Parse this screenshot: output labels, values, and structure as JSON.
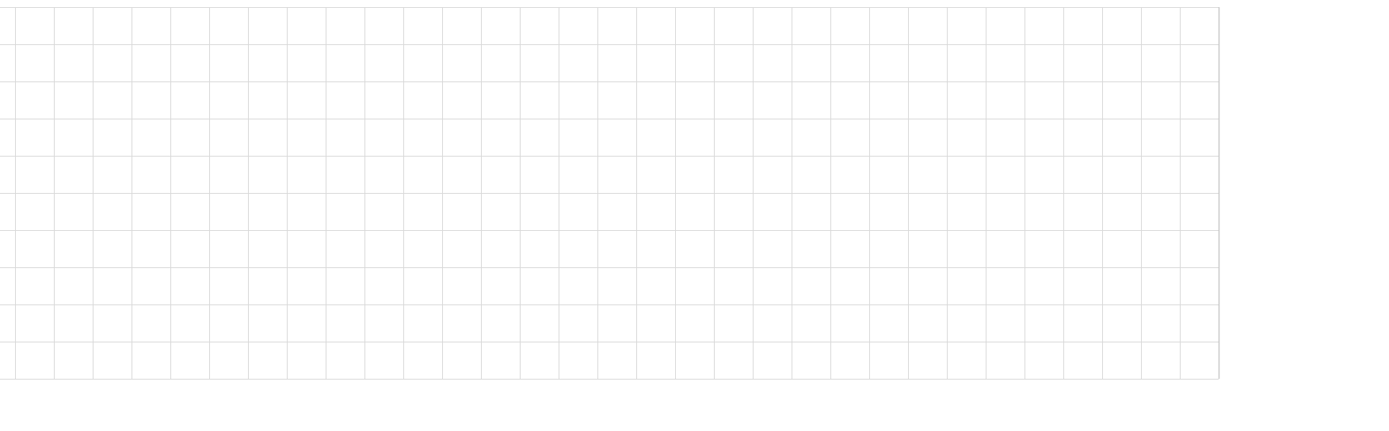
{
  "spreadsheet": {
    "row_count": 10,
    "column_count": 32,
    "cells": []
  },
  "colors": {
    "background": "#ffffff",
    "gridline": "#d9d9d9",
    "border": "#c8c8c8"
  }
}
